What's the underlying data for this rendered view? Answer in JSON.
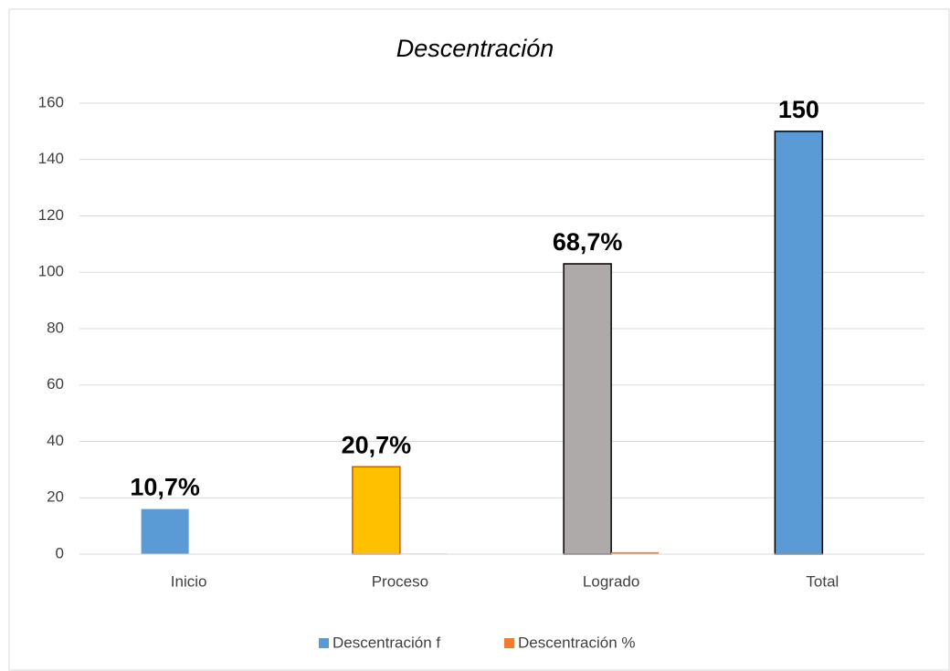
{
  "chart_data": {
    "type": "bar",
    "title": "Descentración",
    "categories": [
      "Inicio",
      "Proceso",
      "Logrado",
      "Total"
    ],
    "series": [
      {
        "name": "Descentración f",
        "color": "#5b9bd5",
        "colors": [
          "#5b9bd5",
          "#ffc000",
          "#aeaaaa",
          "#5b9bd5"
        ],
        "edgecolors": [
          null,
          "#c55a11",
          "#000000",
          "#000000"
        ],
        "values": [
          16,
          31,
          103,
          150
        ]
      },
      {
        "name": "Descentración %",
        "color": "#ed7d31",
        "values": [
          0.107,
          0.207,
          0.687,
          null
        ],
        "value_labels": [
          "10,7%",
          "20,7%",
          "68,7%",
          null
        ]
      }
    ],
    "ylim": [
      0,
      160
    ],
    "yticks": [
      0,
      20,
      40,
      60,
      80,
      100,
      120,
      140,
      160
    ],
    "grid": true,
    "legend": "bottom"
  }
}
